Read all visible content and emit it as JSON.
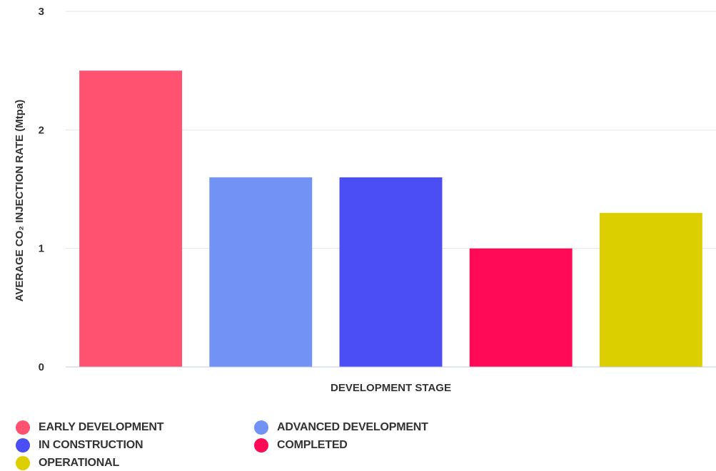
{
  "chart_data": {
    "type": "bar",
    "categories": [
      "EARLY DEVELOPMENT",
      "ADVANCED DEVELOPMENT",
      "IN CONSTRUCTION",
      "COMPLETED",
      "OPERATIONAL"
    ],
    "values": [
      2.5,
      1.6,
      1.6,
      1.0,
      1.3
    ],
    "colors": [
      "#ff5270",
      "#7293f5",
      "#4b4df5",
      "#ff0a57",
      "#dccf00"
    ],
    "xlabel": "DEVELOPMENT STAGE",
    "ylabel": "AVERAGE CO₂ INJECTION RATE (Mtpa)",
    "ylim": [
      0,
      3
    ],
    "yticks": [
      "0",
      "1",
      "2",
      "3"
    ],
    "grid": true,
    "legend_position": "bottom-left"
  }
}
